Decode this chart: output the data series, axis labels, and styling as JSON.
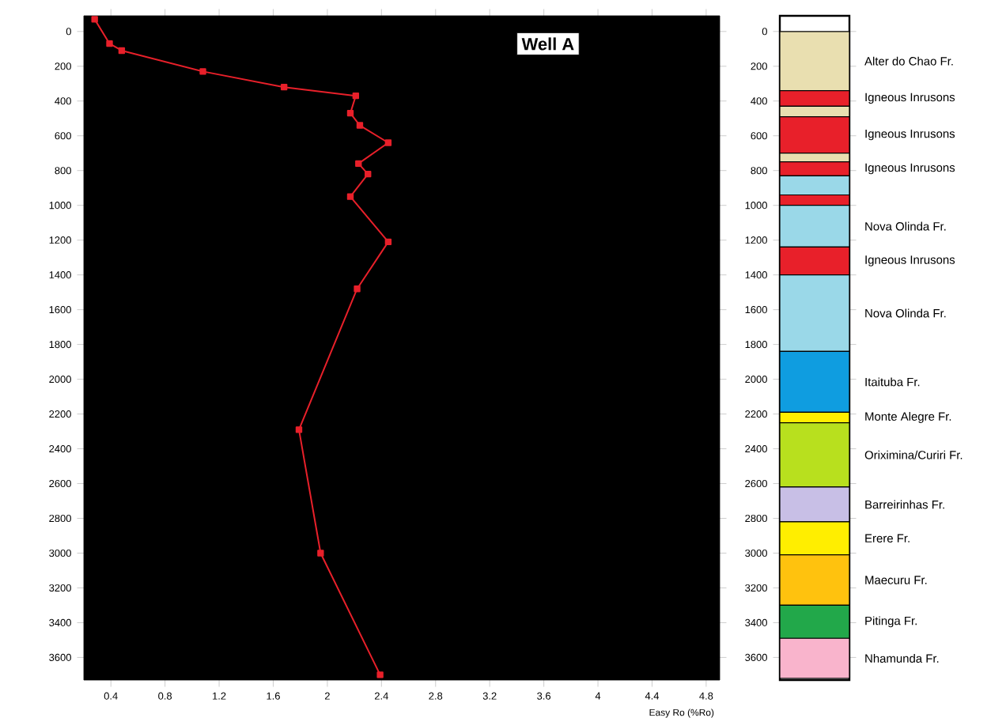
{
  "chart_data": [
    {
      "type": "line",
      "title": "Well A",
      "xlabel": "Easy Ro (%Ro)",
      "color": "#e8202a",
      "marker": "square",
      "line_style": "solid",
      "x": [
        0.28,
        0.39,
        0.48,
        1.08,
        1.68,
        2.21,
        2.17,
        2.24,
        2.45,
        2.23,
        2.3,
        2.17,
        2.45,
        2.22,
        1.79,
        1.95,
        2.39
      ],
      "values": [
        -70,
        70,
        110,
        230,
        320,
        370,
        470,
        540,
        640,
        760,
        820,
        950,
        1210,
        1480,
        2290,
        3000,
        3700
      ],
      "xlim": [
        0.2,
        4.9
      ],
      "xticks": [
        0.4,
        0.8,
        1.2,
        1.6,
        2,
        2.4,
        2.8,
        3.2,
        3.6,
        4,
        4.4,
        4.8
      ],
      "ylim": [
        3730,
        -90
      ],
      "yticks": [
        0,
        200,
        400,
        600,
        800,
        1000,
        1200,
        1400,
        1600,
        1800,
        2000,
        2200,
        2400,
        2600,
        2800,
        3000,
        3200,
        3400,
        3600
      ]
    },
    {
      "type": "bar",
      "stacked": true,
      "categories": [
        null
      ],
      "ylim": [
        3730,
        -90
      ],
      "yticks": [
        0,
        200,
        400,
        600,
        800,
        1000,
        1200,
        1400,
        1600,
        1800,
        2000,
        2200,
        2400,
        2600,
        2800,
        3000,
        3200,
        3400,
        3600
      ],
      "series": [
        {
          "name": "Alter do Chao Fr.",
          "color": "#e9dfb0",
          "values": [
            340
          ]
        },
        {
          "name": "Igneous Inrusons",
          "color": "#e8202a",
          "values": [
            90
          ]
        },
        {
          "color": "#e9dfb0",
          "values": [
            60
          ]
        },
        {
          "name": "Igneous Inrusons",
          "color": "#e8202a",
          "values": [
            210
          ]
        },
        {
          "color": "#e9dfb0",
          "values": [
            50
          ]
        },
        {
          "name": "Igneous Inrusons",
          "color": "#e8202a",
          "values": [
            80
          ]
        },
        {
          "color": "#9ad8e8",
          "values": [
            110
          ]
        },
        {
          "color": "#e8202a",
          "values": [
            60
          ]
        },
        {
          "name": "Nova Olinda Fr.",
          "color": "#9ad8e8",
          "values": [
            240
          ]
        },
        {
          "name": "Igneous Inrusons",
          "color": "#e8202a",
          "values": [
            160
          ]
        },
        {
          "name": "Nova Olinda Fr.",
          "color": "#9ad8e8",
          "values": [
            440
          ]
        },
        {
          "name": "Itaituba Fr.",
          "color": "#0f9de0",
          "values": [
            350
          ]
        },
        {
          "name": "Monte Alegre Fr.",
          "color": "#ffee00",
          "values": [
            60
          ]
        },
        {
          "name": "Oriximina/Curiri Fr.",
          "color": "#b8e01e",
          "values": [
            370
          ]
        },
        {
          "name": "Barreirinhas Fr.",
          "color": "#c8bfe6",
          "values": [
            200
          ]
        },
        {
          "name": "Erere Fr.",
          "color": "#ffee00",
          "values": [
            190
          ]
        },
        {
          "name": "Maecuru Fr.",
          "color": "#ffc20e",
          "values": [
            290
          ]
        },
        {
          "name": "Pitinga Fr.",
          "color": "#22a84a",
          "values": [
            190
          ]
        },
        {
          "name": "Nhamunda Fr.",
          "color": "#f9b4cc",
          "values": [
            230
          ]
        }
      ]
    }
  ]
}
